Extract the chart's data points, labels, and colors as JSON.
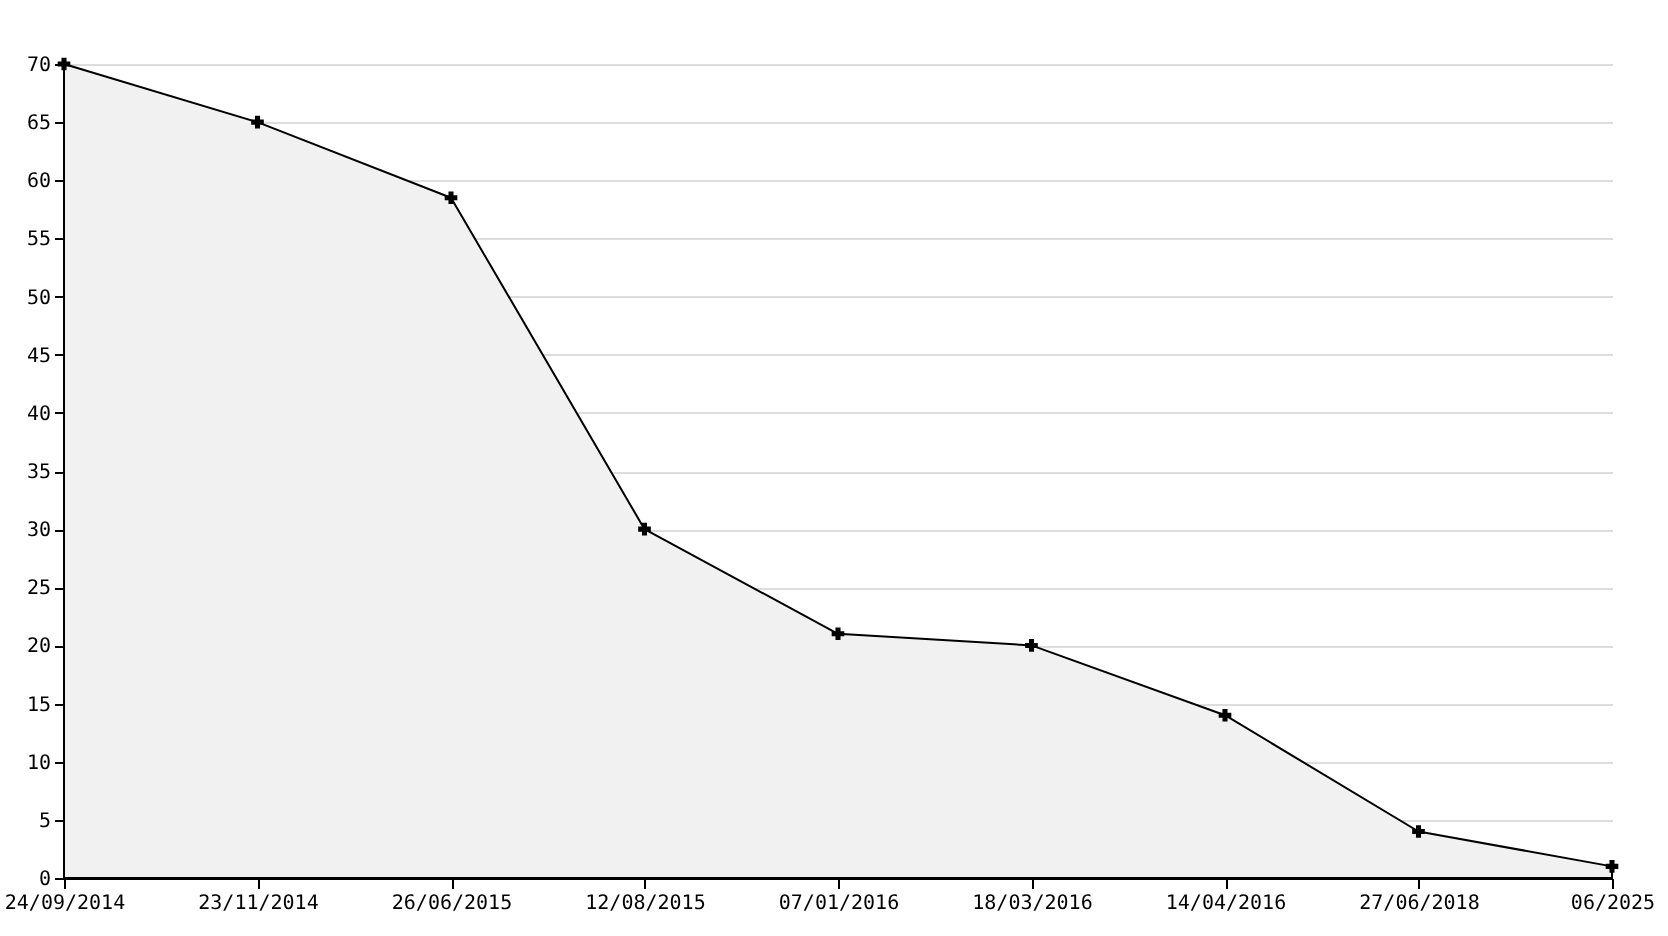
{
  "chart_data": {
    "type": "area",
    "categories": [
      "24/09/2014",
      "23/11/2014",
      "26/06/2015",
      "12/08/2015",
      "07/01/2016",
      "18/03/2016",
      "14/04/2016",
      "27/06/2018",
      "06/2025"
    ],
    "series": [
      {
        "color": "#000000",
        "values": [
          70,
          65,
          58.5,
          30,
          21,
          20,
          14,
          4,
          1
        ]
      }
    ],
    "ylim": [
      0,
      70
    ],
    "yticks": [
      0,
      5,
      10,
      15,
      20,
      25,
      30,
      35,
      40,
      45,
      50,
      55,
      60,
      65,
      70
    ],
    "grid": "y",
    "marker": "cross",
    "line_style": "solid"
  }
}
